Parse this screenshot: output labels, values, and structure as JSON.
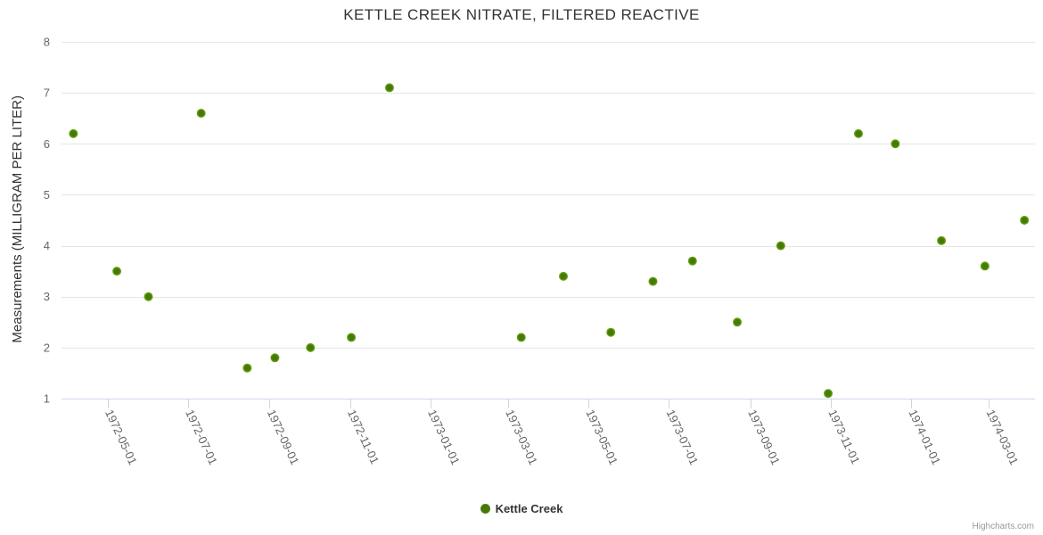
{
  "chart_data": {
    "type": "scatter",
    "title": "KETTLE CREEK NITRATE, FILTERED REACTIVE",
    "ylabel": "Measurements (MILLIGRAM PER LITER)",
    "xlabel": "",
    "ylim": [
      1,
      8
    ],
    "y_ticks": [
      1,
      2,
      3,
      4,
      5,
      6,
      7,
      8
    ],
    "x_ticks": [
      "1972-05-01",
      "1972-07-01",
      "1972-09-01",
      "1972-11-01",
      "1973-01-01",
      "1973-03-01",
      "1973-05-01",
      "1973-07-01",
      "1973-09-01",
      "1973-11-01",
      "1974-01-01",
      "1974-03-01"
    ],
    "x_range": [
      "1972-03-27",
      "1974-04-05"
    ],
    "grid": "horizontal-lines-only",
    "legend_position": "bottom-center",
    "x_label_rotation_deg": 65,
    "series": [
      {
        "name": "Kettle Creek",
        "points": [
          {
            "date": "1972-04-05",
            "value": 6.2
          },
          {
            "date": "1972-05-08",
            "value": 3.5
          },
          {
            "date": "1972-06-01",
            "value": 3.0
          },
          {
            "date": "1972-07-11",
            "value": 6.6
          },
          {
            "date": "1972-08-15",
            "value": 1.6
          },
          {
            "date": "1972-09-05",
            "value": 1.8
          },
          {
            "date": "1972-10-02",
            "value": 2.0
          },
          {
            "date": "1972-11-02",
            "value": 2.2
          },
          {
            "date": "1972-12-01",
            "value": 7.1
          },
          {
            "date": "1973-03-11",
            "value": 2.2
          },
          {
            "date": "1973-04-12",
            "value": 3.4
          },
          {
            "date": "1973-05-18",
            "value": 2.3
          },
          {
            "date": "1973-06-19",
            "value": 3.3
          },
          {
            "date": "1973-07-19",
            "value": 3.7
          },
          {
            "date": "1973-08-22",
            "value": 2.5
          },
          {
            "date": "1973-09-24",
            "value": 4.0
          },
          {
            "date": "1973-10-30",
            "value": 1.1
          },
          {
            "date": "1973-11-22",
            "value": 6.2
          },
          {
            "date": "1973-12-20",
            "value": 6.0
          },
          {
            "date": "1974-01-24",
            "value": 4.1
          },
          {
            "date": "1974-02-26",
            "value": 3.6
          },
          {
            "date": "1974-03-28",
            "value": 4.5
          }
        ]
      }
    ],
    "watermark": "Highcharts.com",
    "colors": {
      "marker": "#72ae0e",
      "marker_center": "#44790a",
      "axis": "#ccd6eb",
      "grid": "#e6e6e6",
      "tick_label": "#666666",
      "text": "#333333",
      "watermark": "#999999"
    }
  }
}
